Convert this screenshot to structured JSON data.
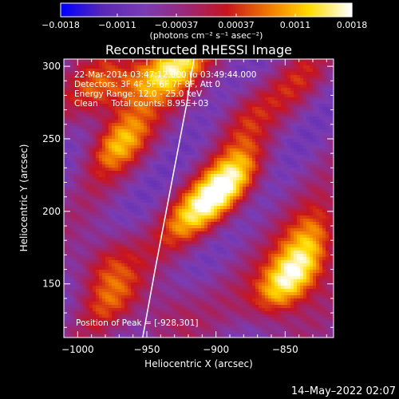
{
  "chart_data": {
    "type": "heatmap",
    "title": "Reconstructed RHESSI Image",
    "xlabel": "Heliocentric X (arcsec)",
    "ylabel": "Heliocentric Y (arcsec)",
    "xlim": [
      -1010,
      -815
    ],
    "ylim": [
      113,
      305
    ],
    "xticks": [
      -1000,
      -950,
      -900,
      -850
    ],
    "xtick_labels": [
      "−1000",
      "−950",
      "−900",
      "−850"
    ],
    "yticks": [
      150,
      200,
      250,
      300
    ],
    "ytick_labels": [
      "150",
      "200",
      "250",
      "300"
    ],
    "colorbar": {
      "range": [
        -0.0018,
        0.0018
      ],
      "ticks": [
        -0.0018,
        -0.0011,
        -0.00037,
        0.00037,
        0.0011,
        0.0018
      ],
      "tick_labels": [
        "−0.0018",
        "−0.0011",
        "−0.00037",
        "0.00037",
        "0.0011",
        "0.0018"
      ],
      "units_label": "(photons cm⁻² s⁻¹ asec⁻²)",
      "colormap": [
        "#0000ff",
        "#5a28b4",
        "#7a3cb4",
        "#9a2878",
        "#c8141e",
        "#f07800",
        "#ffdc00",
        "#ffffff"
      ]
    },
    "annotations": [
      "22-Mar-2014 03:47:12.000 to 03:49:44.000",
      "Detectors: 3F 4F 5F 6F 7F 8F, Att 0",
      "Energy Range: 12.0 - 25.0 keV",
      "Clean     Total counts: 8.95E+03"
    ],
    "peak_label": "Position of Peak = [-928,301]",
    "sources": [
      {
        "x": -928,
        "y": 301,
        "value": 0.0018
      },
      {
        "x": -970,
        "y": 248,
        "value": 0.0015
      },
      {
        "x": -985,
        "y": 285,
        "value": 0.0011
      },
      {
        "x": -955,
        "y": 290,
        "value": 0.0012
      },
      {
        "x": -900,
        "y": 210,
        "value": 0.0014
      },
      {
        "x": -885,
        "y": 225,
        "value": 0.0012
      },
      {
        "x": -920,
        "y": 195,
        "value": 0.001
      },
      {
        "x": -840,
        "y": 160,
        "value": 0.0017
      },
      {
        "x": -855,
        "y": 145,
        "value": 0.0013
      },
      {
        "x": -830,
        "y": 185,
        "value": 0.0011
      },
      {
        "x": -980,
        "y": 165,
        "value": 0.001
      },
      {
        "x": -975,
        "y": 140,
        "value": 0.0008
      },
      {
        "x": -880,
        "y": 265,
        "value": 0.0007
      },
      {
        "x": -840,
        "y": 290,
        "value": 0.0006
      },
      {
        "x": -935,
        "y": 130,
        "value": 0.0007
      }
    ],
    "limb_curve": [
      [
        -953,
        113
      ],
      [
        -944,
        160
      ],
      [
        -936,
        200
      ],
      [
        -928,
        240
      ],
      [
        -921,
        275
      ],
      [
        -916,
        305
      ]
    ]
  },
  "footer": {
    "date": "14–May–2022 02:07"
  }
}
